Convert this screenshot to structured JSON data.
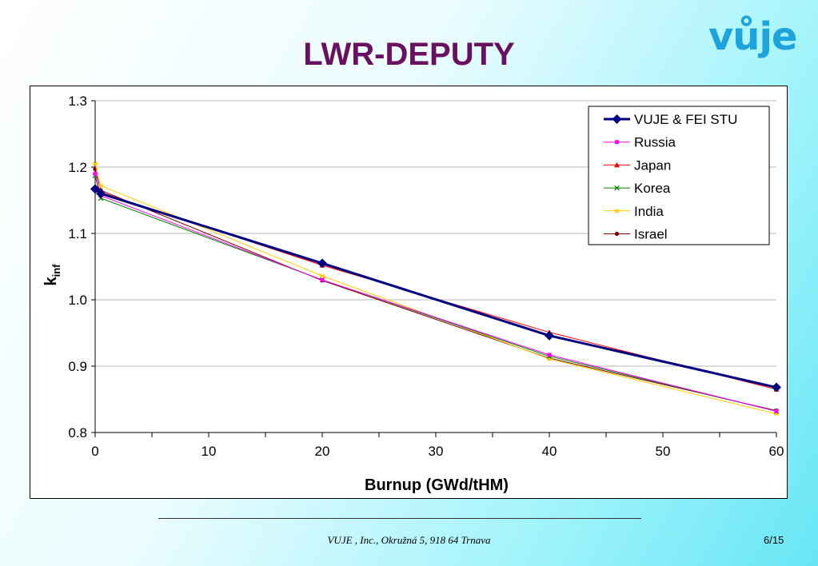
{
  "header": {
    "title": "LWR-DEPUTY",
    "logo_text": "vůje"
  },
  "footer": {
    "address": "VUJE , Inc., Okružná 5, 918 64 Trnava",
    "page": "6/15"
  },
  "chart_data": {
    "type": "line",
    "xlabel": "Burnup (GWd/tHM)",
    "ylabel_main": "k",
    "ylabel_sub": "inf",
    "xlim": [
      0,
      60
    ],
    "ylim": [
      0.8,
      1.3
    ],
    "xticks": [
      0,
      10,
      20,
      30,
      40,
      50,
      60
    ],
    "yticks": [
      0.8,
      0.9,
      1.0,
      1.1,
      1.2,
      1.3
    ],
    "ytick_labels": [
      "0.8",
      "0.9",
      "1.0",
      "1.1",
      "1.2",
      "1.3"
    ],
    "grid": "horizontal",
    "legend_position": "top-right",
    "series": [
      {
        "name": "VUJE & FEI STU",
        "color": "#000080",
        "marker": "diamond",
        "x": [
          0,
          0.5,
          20,
          40,
          60
        ],
        "y": [
          1.167,
          1.16,
          1.055,
          0.946,
          0.868
        ]
      },
      {
        "name": "Russia",
        "color": "#ff00ff",
        "marker": "square",
        "x": [
          0,
          0.5,
          20,
          40,
          60
        ],
        "y": [
          1.19,
          1.157,
          1.03,
          0.917,
          0.832
        ]
      },
      {
        "name": "Japan",
        "color": "#ff0000",
        "marker": "triangle",
        "x": [
          0,
          0.5,
          20,
          40,
          60
        ],
        "y": [
          1.17,
          1.162,
          1.052,
          0.951,
          0.865
        ]
      },
      {
        "name": "Korea",
        "color": "#008000",
        "marker": "x",
        "x": [
          0,
          0.5,
          20,
          40,
          60
        ],
        "y": [
          1.187,
          1.153,
          1.03,
          0.915,
          0.832
        ]
      },
      {
        "name": "India",
        "color": "#ffcc00",
        "marker": "star",
        "x": [
          0,
          0.5,
          20,
          40,
          60
        ],
        "y": [
          1.205,
          1.172,
          1.036,
          0.911,
          0.828
        ]
      },
      {
        "name": "Israel",
        "color": "#800000",
        "marker": "circle",
        "x": [
          0,
          0.5,
          20,
          40,
          60
        ],
        "y": [
          1.197,
          1.165,
          1.029,
          0.912,
          0.833
        ]
      }
    ]
  }
}
